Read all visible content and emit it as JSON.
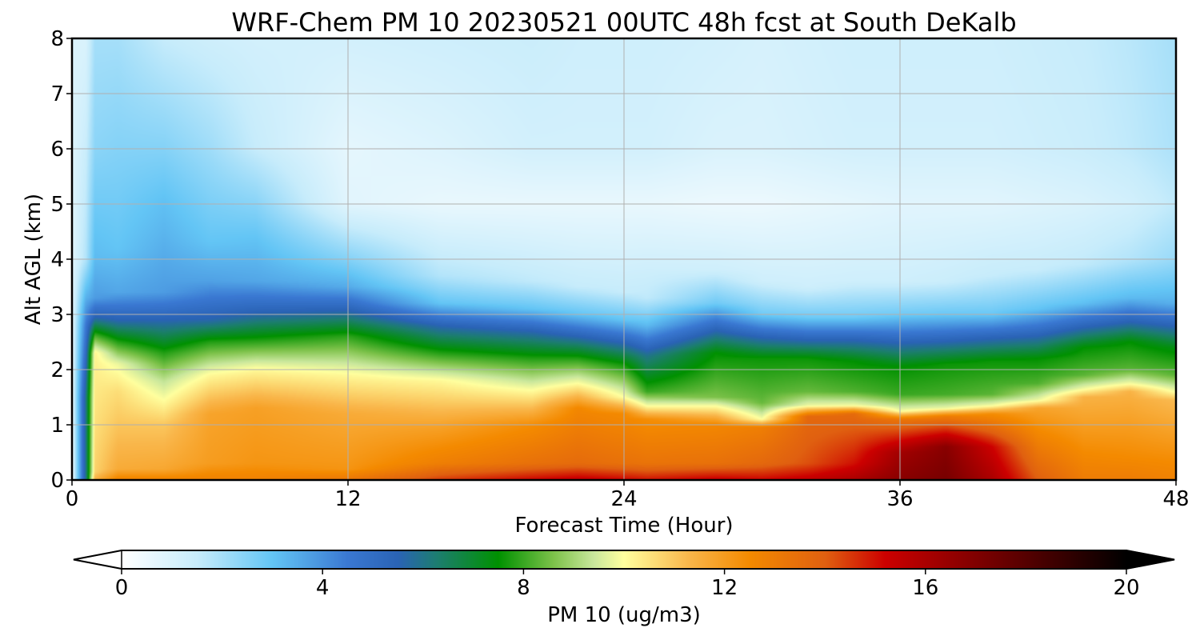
{
  "chart_data": {
    "type": "heatmap",
    "title": "WRF-Chem PM 10  20230521 00UTC 48h fcst at South DeKalb",
    "xlabel": "Forecast Time (Hour)",
    "ylabel": "Alt AGL (km)",
    "xlim": [
      0,
      48
    ],
    "ylim": [
      0,
      8
    ],
    "x_ticks": [
      0,
      12,
      24,
      36,
      48
    ],
    "y_ticks": [
      0,
      1,
      2,
      3,
      4,
      5,
      6,
      7,
      8
    ],
    "grid": true,
    "colorbar": {
      "label": "PM 10  (ug/m3)",
      "min": 0,
      "max": 20,
      "ticks": [
        0,
        4,
        8,
        12,
        16,
        20
      ],
      "extend": "both",
      "stops": [
        {
          "value": 0,
          "color": "#ffffff"
        },
        {
          "value": 1.5,
          "color": "#c7ecfb"
        },
        {
          "value": 3,
          "color": "#63c5f5"
        },
        {
          "value": 4.5,
          "color": "#3a78d2"
        },
        {
          "value": 5.5,
          "color": "#2a63b5"
        },
        {
          "value": 6.3,
          "color": "#1c7e6e"
        },
        {
          "value": 7.5,
          "color": "#009100"
        },
        {
          "value": 8.6,
          "color": "#7dc24a"
        },
        {
          "value": 9.4,
          "color": "#c9e79c"
        },
        {
          "value": 10,
          "color": "#ffff9e"
        },
        {
          "value": 11.3,
          "color": "#f9b64a"
        },
        {
          "value": 12.5,
          "color": "#f48a00"
        },
        {
          "value": 14,
          "color": "#e06010"
        },
        {
          "value": 15.2,
          "color": "#cc0000"
        },
        {
          "value": 17.5,
          "color": "#6b0000"
        },
        {
          "value": 20,
          "color": "#000000"
        }
      ]
    },
    "field": {
      "hours": [
        0,
        0.6,
        1,
        2,
        4,
        6,
        8,
        12,
        16,
        20,
        22,
        24,
        25,
        28,
        30,
        32,
        34,
        36,
        38,
        40,
        42,
        44,
        46,
        48
      ],
      "profiles": [
        [
          [
            0,
            0.5
          ],
          [
            4,
            0.8
          ],
          [
            8,
            1.0
          ]
        ],
        [
          [
            0,
            6
          ],
          [
            1.5,
            6
          ],
          [
            2.8,
            4.5
          ],
          [
            4,
            1.8
          ],
          [
            8,
            1.0
          ]
        ],
        [
          [
            0,
            11.5
          ],
          [
            0.15,
            10.8
          ],
          [
            2.3,
            10.2
          ],
          [
            2.6,
            8.2
          ],
          [
            2.95,
            5.5
          ],
          [
            3.3,
            3.8
          ],
          [
            4,
            3.2
          ],
          [
            6,
            2.4
          ],
          [
            8,
            2.0
          ]
        ],
        [
          [
            0,
            12.8
          ],
          [
            0.2,
            11.6
          ],
          [
            1.6,
            10.6
          ],
          [
            2.1,
            9.8
          ],
          [
            2.5,
            7.8
          ],
          [
            2.9,
            5.5
          ],
          [
            3.4,
            3.6
          ],
          [
            4.2,
            3.0
          ],
          [
            6,
            2.5
          ],
          [
            8,
            2.0
          ]
        ],
        [
          [
            0,
            12.8
          ],
          [
            0.2,
            11.7
          ],
          [
            1.0,
            11.0
          ],
          [
            1.4,
            10.1
          ],
          [
            1.8,
            9.3
          ],
          [
            2.3,
            7.8
          ],
          [
            2.9,
            5.5
          ],
          [
            3.4,
            3.8
          ],
          [
            4.5,
            3.3
          ],
          [
            5,
            3.1
          ],
          [
            6,
            2.5
          ],
          [
            8,
            1.5
          ]
        ],
        [
          [
            0,
            12.8
          ],
          [
            0.3,
            12.0
          ],
          [
            1.2,
            11.8
          ],
          [
            1.9,
            10.1
          ],
          [
            2.5,
            7.8
          ],
          [
            2.9,
            5.6
          ],
          [
            3.6,
            3.7
          ],
          [
            4.3,
            3.0
          ],
          [
            6,
            2.1
          ],
          [
            8,
            1.3
          ]
        ],
        [
          [
            0,
            12.8
          ],
          [
            0.3,
            12.2
          ],
          [
            1.3,
            11.9
          ],
          [
            2.0,
            10.1
          ],
          [
            2.5,
            7.9
          ],
          [
            3.0,
            5.6
          ],
          [
            3.6,
            3.6
          ],
          [
            4.4,
            3.0
          ],
          [
            6,
            1.5
          ],
          [
            8,
            1.2
          ]
        ],
        [
          [
            0,
            13.2
          ],
          [
            0.2,
            12.2
          ],
          [
            1.2,
            11.6
          ],
          [
            1.9,
            10.1
          ],
          [
            2.6,
            7.9
          ],
          [
            3.05,
            5.6
          ],
          [
            3.5,
            3.5
          ],
          [
            4,
            2.5
          ],
          [
            5,
            0.8
          ],
          [
            6,
            0.7
          ],
          [
            8,
            1.2
          ]
        ],
        [
          [
            0,
            14.5
          ],
          [
            0.3,
            12.9
          ],
          [
            1.0,
            11.8
          ],
          [
            1.8,
            10.1
          ],
          [
            2.3,
            7.8
          ],
          [
            2.8,
            5.5
          ],
          [
            3.2,
            3.0
          ],
          [
            3.7,
            1.8
          ],
          [
            5,
            0.6
          ],
          [
            6,
            0.9
          ],
          [
            8,
            1.3
          ]
        ],
        [
          [
            0,
            15.2
          ],
          [
            0.3,
            13.4
          ],
          [
            1.0,
            12.4
          ],
          [
            1.6,
            10.1
          ],
          [
            2.2,
            7.8
          ],
          [
            2.7,
            5.5
          ],
          [
            3.1,
            3.0
          ],
          [
            3.6,
            1.6
          ],
          [
            5,
            0.6
          ],
          [
            6,
            1.2
          ],
          [
            8,
            1.4
          ]
        ],
        [
          [
            0,
            15.5
          ],
          [
            0.3,
            13.6
          ],
          [
            1.3,
            12.6
          ],
          [
            1.75,
            10.0
          ],
          [
            2.2,
            7.8
          ],
          [
            2.6,
            5.5
          ],
          [
            3.0,
            3.0
          ],
          [
            3.5,
            1.5
          ],
          [
            5,
            0.6
          ],
          [
            6,
            1.2
          ],
          [
            8,
            1.3
          ]
        ],
        [
          [
            0,
            15.2
          ],
          [
            0.3,
            13.4
          ],
          [
            1.2,
            12.5
          ],
          [
            1.5,
            10.0
          ],
          [
            2.1,
            7.6
          ],
          [
            2.5,
            5.4
          ],
          [
            2.9,
            3.0
          ],
          [
            3.4,
            1.5
          ],
          [
            5,
            0.6
          ],
          [
            6,
            1.2
          ],
          [
            8,
            1.3
          ]
        ],
        [
          [
            0,
            15.0
          ],
          [
            0.3,
            13.3
          ],
          [
            1.1,
            12.4
          ],
          [
            1.35,
            9.9
          ],
          [
            1.6,
            8.0
          ],
          [
            2.25,
            6.0
          ],
          [
            2.8,
            3.2
          ],
          [
            3.3,
            1.6
          ],
          [
            5,
            0.6
          ],
          [
            6,
            1.2
          ],
          [
            8,
            1.3
          ]
        ],
        [
          [
            0,
            15.4
          ],
          [
            0.3,
            13.4
          ],
          [
            1.0,
            12.6
          ],
          [
            1.35,
            9.9
          ],
          [
            1.5,
            8.6
          ],
          [
            2.3,
            7.5
          ],
          [
            2.75,
            5.3
          ],
          [
            3.2,
            2.8
          ],
          [
            3.8,
            1.3
          ],
          [
            5,
            0.5
          ],
          [
            6,
            1.0
          ],
          [
            8,
            1.2
          ]
        ],
        [
          [
            0,
            15.2
          ],
          [
            0.3,
            13.7
          ],
          [
            0.95,
            12.9
          ],
          [
            1.1,
            10.0
          ],
          [
            1.4,
            8.4
          ],
          [
            2.2,
            7.6
          ],
          [
            2.6,
            5.4
          ],
          [
            3.0,
            2.8
          ],
          [
            3.6,
            1.3
          ],
          [
            5,
            0.5
          ],
          [
            6,
            1.0
          ],
          [
            8,
            1.1
          ]
        ],
        [
          [
            0,
            15.5
          ],
          [
            0.3,
            14.2
          ],
          [
            1.15,
            13.7
          ],
          [
            1.35,
            9.8
          ],
          [
            1.6,
            8.4
          ],
          [
            2.2,
            7.6
          ],
          [
            2.55,
            5.4
          ],
          [
            2.95,
            2.8
          ],
          [
            3.5,
            1.3
          ],
          [
            5,
            0.6
          ],
          [
            6,
            1.1
          ],
          [
            8,
            1.2
          ]
        ],
        [
          [
            0,
            16.0
          ],
          [
            0.3,
            15.0
          ],
          [
            1.2,
            13.6
          ],
          [
            1.35,
            9.9
          ],
          [
            1.6,
            8.2
          ],
          [
            2.15,
            7.5
          ],
          [
            2.55,
            5.4
          ],
          [
            2.95,
            2.8
          ],
          [
            3.6,
            1.3
          ],
          [
            5,
            0.7
          ],
          [
            6,
            1.2
          ],
          [
            8,
            1.3
          ]
        ],
        [
          [
            0,
            16.8
          ],
          [
            0.5,
            16.2
          ],
          [
            1.1,
            13.2
          ],
          [
            1.25,
            9.9
          ],
          [
            1.55,
            8.0
          ],
          [
            2.05,
            7.5
          ],
          [
            2.5,
            5.4
          ],
          [
            3.0,
            2.8
          ],
          [
            3.6,
            1.3
          ],
          [
            5,
            0.8
          ],
          [
            6,
            1.2
          ],
          [
            8,
            1.3
          ]
        ],
        [
          [
            0,
            17.2
          ],
          [
            0.6,
            16.8
          ],
          [
            1.15,
            13.0
          ],
          [
            1.3,
            9.8
          ],
          [
            1.55,
            8.1
          ],
          [
            2.1,
            7.6
          ],
          [
            2.55,
            5.3
          ],
          [
            3.0,
            2.9
          ],
          [
            3.6,
            1.4
          ],
          [
            5,
            0.8
          ],
          [
            6,
            1.2
          ],
          [
            8,
            1.3
          ]
        ],
        [
          [
            0,
            16.0
          ],
          [
            0.6,
            15.2
          ],
          [
            1.2,
            12.4
          ],
          [
            1.35,
            9.9
          ],
          [
            1.55,
            8.3
          ],
          [
            2.15,
            7.6
          ],
          [
            2.6,
            5.3
          ],
          [
            3.0,
            2.9
          ],
          [
            3.7,
            1.5
          ],
          [
            5,
            0.8
          ],
          [
            6,
            1.2
          ],
          [
            8,
            1.3
          ]
        ],
        [
          [
            0,
            14.0
          ],
          [
            0.5,
            13.2
          ],
          [
            1.3,
            11.8
          ],
          [
            1.45,
            9.8
          ],
          [
            1.75,
            8.2
          ],
          [
            2.2,
            7.5
          ],
          [
            2.65,
            5.3
          ],
          [
            3.1,
            3.0
          ],
          [
            3.8,
            1.5
          ],
          [
            5,
            0.9
          ],
          [
            6,
            1.3
          ],
          [
            8,
            1.4
          ]
        ],
        [
          [
            0,
            13.0
          ],
          [
            0.4,
            12.6
          ],
          [
            1.5,
            11.4
          ],
          [
            1.65,
            9.9
          ],
          [
            1.9,
            8.3
          ],
          [
            2.4,
            7.5
          ],
          [
            2.8,
            5.3
          ],
          [
            3.2,
            3.1
          ],
          [
            3.9,
            1.6
          ],
          [
            5,
            1.0
          ],
          [
            6,
            1.4
          ],
          [
            8,
            1.5
          ]
        ],
        [
          [
            0,
            13.0
          ],
          [
            0.4,
            12.5
          ],
          [
            1.6,
            11.4
          ],
          [
            1.75,
            9.9
          ],
          [
            2.0,
            8.3
          ],
          [
            2.5,
            7.5
          ],
          [
            2.9,
            5.3
          ],
          [
            3.3,
            3.2
          ],
          [
            4.0,
            1.8
          ],
          [
            5,
            1.2
          ],
          [
            6,
            1.6
          ],
          [
            8,
            1.7
          ]
        ],
        [
          [
            0,
            12.8
          ],
          [
            0.4,
            12.4
          ],
          [
            1.45,
            11.2
          ],
          [
            1.6,
            9.9
          ],
          [
            1.9,
            8.3
          ],
          [
            2.4,
            7.3
          ],
          [
            2.8,
            5.4
          ],
          [
            3.2,
            3.4
          ],
          [
            4.0,
            2.2
          ],
          [
            5,
            1.6
          ],
          [
            6,
            1.9
          ],
          [
            8,
            2.0
          ]
        ]
      ]
    }
  }
}
